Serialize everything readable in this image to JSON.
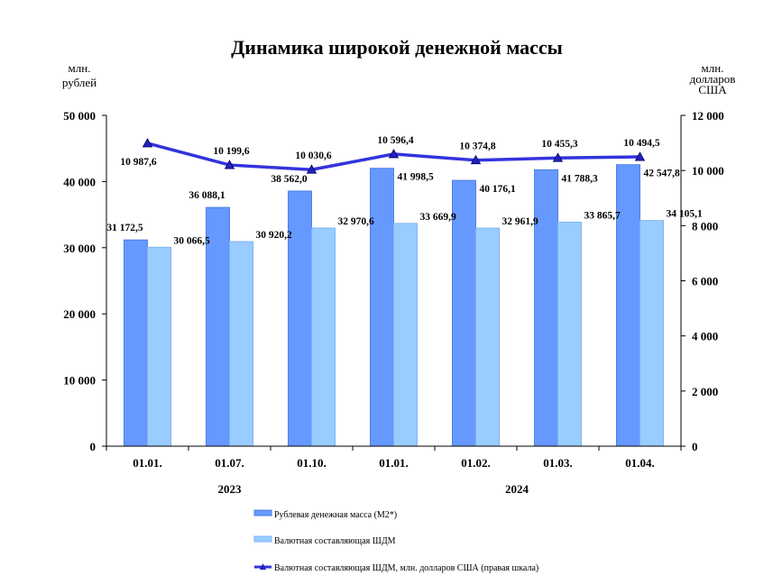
{
  "chart_data": {
    "type": "bar",
    "title": "Динамика широкой денежной массы",
    "ylabel_left": "млн. рублей",
    "ylabel_right": "млн. долларов США",
    "categories": [
      "01.01.",
      "01.07.",
      "01.10.",
      "01.01.",
      "01.02.",
      "01.03.",
      "01.04."
    ],
    "year_groups": [
      {
        "label": "2023",
        "from": 0,
        "to": 2
      },
      {
        "label": "2024",
        "from": 3,
        "to": 6
      }
    ],
    "ylim_left": [
      0,
      50000
    ],
    "yticks_left": [
      "0",
      "10 000",
      "20 000",
      "30 000",
      "40 000",
      "50 000"
    ],
    "ylim_right": [
      0,
      12000
    ],
    "yticks_right": [
      "0",
      "2 000",
      "4 000",
      "6 000",
      "8 000",
      "10 000",
      "12 000"
    ],
    "grid": false,
    "legend_position": "bottom",
    "series": [
      {
        "name": "Рублевая денежная масса (М2*)",
        "kind": "bar",
        "axis": "left",
        "color": "#6699ff",
        "values": [
          31172.5,
          36088.1,
          38562.0,
          41998.5,
          40176.1,
          41788.3,
          42547.8
        ],
        "labels": [
          "31 172,5",
          "36 088,1",
          "38 562,0",
          "41 998,5",
          "40 176,1",
          "41 788,3",
          "42 547,8"
        ]
      },
      {
        "name": "Валютная составляющая ШДМ",
        "kind": "bar",
        "axis": "left",
        "color": "#99ccff",
        "values": [
          30066.5,
          30920.2,
          32970.6,
          33669.9,
          32961.9,
          33865.7,
          34105.1
        ],
        "labels": [
          "30 066,5",
          "30 920,2",
          "32 970,6",
          "33 669,9",
          "32 961,9",
          "33 865,7",
          "34 105,1"
        ]
      },
      {
        "name": "Валютная составляющая ШДМ, млн. долларов США (правая шкала)",
        "kind": "line",
        "axis": "right",
        "color": "#3333dd",
        "values": [
          10987.6,
          10199.6,
          10030.6,
          10596.4,
          10374.8,
          10455.3,
          10494.5
        ],
        "labels": [
          "10 987,6",
          "10 199,6",
          "10 030,6",
          "10 596,4",
          "10 374,8",
          "10 455,3",
          "10 494,5"
        ]
      }
    ]
  }
}
